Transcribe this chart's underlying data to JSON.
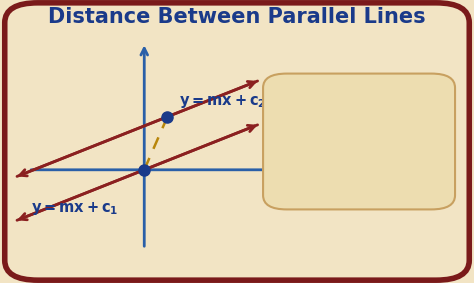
{
  "title": "Distance Between Parallel Lines",
  "title_color": "#1a3a8a",
  "title_fontsize": 15,
  "bg_color": "#f2e4c4",
  "border_color": "#7a1a1a",
  "axis_color": "#2a5fa8",
  "line_color": "#8b2020",
  "dot_color": "#1a3a8a",
  "label_color": "#1a3a8a",
  "formula_text_color": "#5a1a00",
  "formula_bg": "#edddb0",
  "formula_border": "#c8a060",
  "dashed_color": "#b8860b"
}
